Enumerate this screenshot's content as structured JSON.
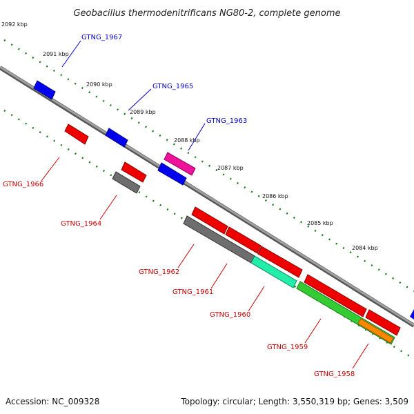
{
  "title": "Geobacillus thermodenitrificans NG80-2, complete genome",
  "footer": {
    "accession": "Accession: NC_009328",
    "topology": "Topology: circular; Length: 3,550,319 bp; Genes: 3,509"
  },
  "colors": {
    "backbone": "#808080",
    "tick": "#1a7a1a",
    "forward_label": "#0000cc",
    "reverse_label": "#cc0000"
  },
  "kbp_labels": [
    "2092 kbp",
    "2091 kbp",
    "2090 kbp",
    "2089 kbp",
    "2088 kbp",
    "2087 kbp",
    "2086 kbp",
    "2085 kbp",
    "2084 kbp"
  ],
  "gene_labels": {
    "forward": [
      "GTNG_1967",
      "GTNG_1965",
      "GTNG_1963"
    ],
    "reverse": [
      "GTNG_1966",
      "GTNG_1964",
      "GTNG_1962",
      "GTNG_1961",
      "GTNG_1960",
      "GTNG_1959",
      "GTNG_1958"
    ]
  }
}
